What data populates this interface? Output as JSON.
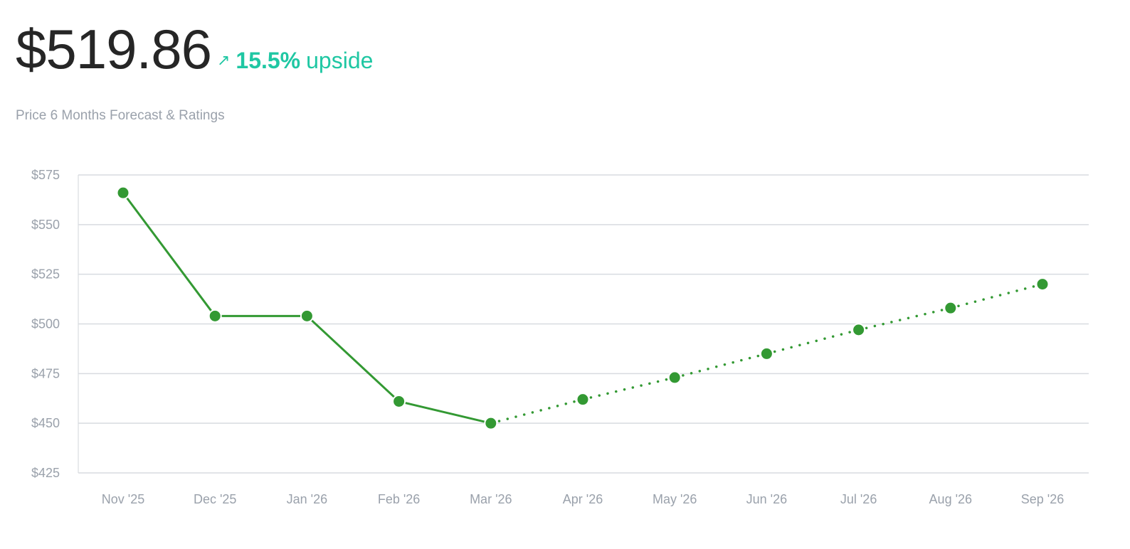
{
  "header": {
    "price": "$519.86",
    "arrow": "↗",
    "upside_pct": "15.5%",
    "upside_label": "upside",
    "subtitle": "Price 6 Months Forecast & Ratings"
  },
  "colors": {
    "accent": "#1fc7a3",
    "series": "#339933",
    "grid": "#d8dbe0",
    "tick_text": "#9aa1ab",
    "price_text": "#262626"
  },
  "chart_data": {
    "type": "line",
    "title": "",
    "xlabel": "",
    "ylabel": "",
    "x": [
      "Nov '25",
      "Dec '25",
      "Jan '26",
      "Feb '26",
      "Mar '26",
      "Apr '26",
      "May '26",
      "Jun '26",
      "Jul '26",
      "Aug '26",
      "Sep '26"
    ],
    "ylim": [
      425,
      575
    ],
    "yticks": [
      575,
      550,
      525,
      500,
      475,
      450,
      425
    ],
    "ytick_labels": [
      "$575",
      "$550",
      "$525",
      "$500",
      "$475",
      "$450",
      "$425"
    ],
    "grid": true,
    "legend": "none",
    "series": [
      {
        "style": "solid",
        "x": [
          "Nov '25",
          "Dec '25",
          "Jan '26",
          "Feb '26",
          "Mar '26"
        ],
        "values": [
          566,
          504,
          504,
          461,
          450
        ]
      },
      {
        "style": "dotted",
        "x": [
          "Mar '26",
          "Apr '26",
          "May '26",
          "Jun '26",
          "Jul '26",
          "Aug '26",
          "Sep '26"
        ],
        "values": [
          450,
          462,
          473,
          485,
          497,
          508,
          520
        ]
      }
    ]
  }
}
